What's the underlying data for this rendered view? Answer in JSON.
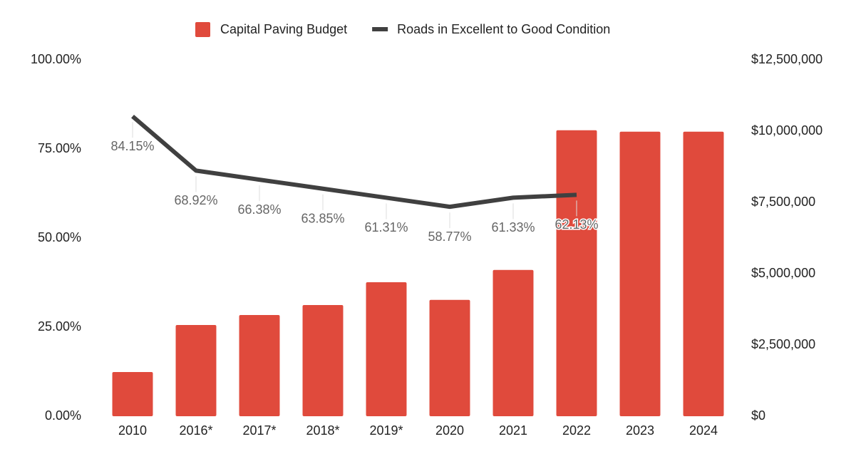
{
  "chart_data": {
    "type": "bar",
    "categories": [
      "2010",
      "2016*",
      "2017*",
      "2018*",
      "2019*",
      "2020",
      "2021",
      "2022",
      "2023",
      "2024"
    ],
    "series": [
      {
        "name": "Capital Paving Budget",
        "type": "bar",
        "axis": "y2",
        "color": "#e04a3c",
        "values": [
          1550000,
          3200000,
          3550000,
          3900000,
          4700000,
          4080000,
          5130000,
          10030000,
          9980000,
          9980000
        ]
      },
      {
        "name": "Roads in Excellent to Good Condition",
        "type": "line",
        "axis": "y",
        "color": "#404040",
        "values": [
          84.15,
          68.92,
          66.38,
          63.85,
          61.31,
          58.77,
          61.33,
          62.13,
          null,
          null
        ],
        "value_labels": [
          "84.15%",
          "68.92%",
          "66.38%",
          "63.85%",
          "61.31%",
          "58.77%",
          "61.33%",
          "62.13%",
          null,
          null
        ]
      }
    ],
    "ylim": [
      0,
      100
    ],
    "yticks": [
      {
        "value": 0,
        "label": "0.00%"
      },
      {
        "value": 25,
        "label": "25.00%"
      },
      {
        "value": 50,
        "label": "50.00%"
      },
      {
        "value": 75,
        "label": "75.00%"
      },
      {
        "value": 100,
        "label": "100.00%"
      }
    ],
    "y2lim": [
      0,
      12500000
    ],
    "y2ticks": [
      {
        "value": 0,
        "label": "$0"
      },
      {
        "value": 2500000,
        "label": "$2,500,000"
      },
      {
        "value": 5000000,
        "label": "$5,000,000"
      },
      {
        "value": 7500000,
        "label": "$7,500,000"
      },
      {
        "value": 10000000,
        "label": "$10,000,000"
      },
      {
        "value": 12500000,
        "label": "$12,500,000"
      }
    ],
    "legend": "top",
    "grid": false
  }
}
